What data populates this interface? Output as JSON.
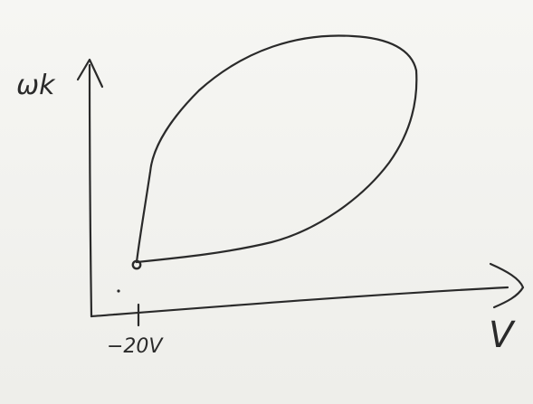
{
  "diagram": {
    "y_axis_label": "ωk",
    "x_axis_label": "V",
    "x_tick_label": "−20V"
  }
}
